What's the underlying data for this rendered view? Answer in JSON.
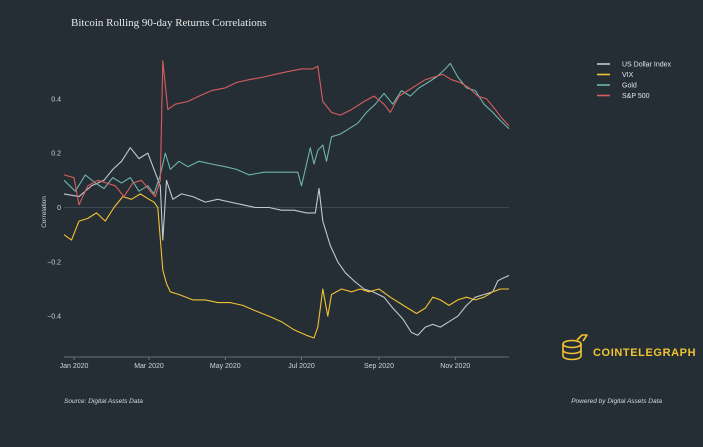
{
  "chart_data": {
    "type": "line",
    "title": "Bitcoin Rolling 90-day Returns Correlations",
    "xlabel": "",
    "ylabel": "Correlation",
    "x_tick_labels": [
      "Jan 2020",
      "Mar 2020",
      "May 2020",
      "Jul 2020",
      "Sep 2020",
      "Nov 2020"
    ],
    "y_ticks": [
      -0.4,
      -0.2,
      0,
      0.2,
      0.4
    ],
    "y_tick_labels": [
      "−0.4",
      "−0.2",
      "0",
      "0.2",
      "0.4"
    ],
    "xlim": [
      "2019-12-24",
      "2020-12-14"
    ],
    "ylim": [
      -0.55,
      0.55
    ],
    "grid": false,
    "legend_position": "top-right",
    "series": [
      {
        "name": "US Dollar Index",
        "color": "#c4c8cc",
        "points": [
          [
            "2019-12-24",
            0.05
          ],
          [
            "2020-01-05",
            0.04
          ],
          [
            "2020-01-15",
            0.08
          ],
          [
            "2020-01-25",
            0.1
          ],
          [
            "2020-02-01",
            0.14
          ],
          [
            "2020-02-08",
            0.17
          ],
          [
            "2020-02-15",
            0.22
          ],
          [
            "2020-02-22",
            0.18
          ],
          [
            "2020-02-29",
            0.2
          ],
          [
            "2020-03-05",
            0.14
          ],
          [
            "2020-03-10",
            0.08
          ],
          [
            "2020-03-12",
            -0.12
          ],
          [
            "2020-03-15",
            0.1
          ],
          [
            "2020-03-20",
            0.03
          ],
          [
            "2020-03-27",
            0.05
          ],
          [
            "2020-04-05",
            0.04
          ],
          [
            "2020-04-15",
            0.02
          ],
          [
            "2020-04-25",
            0.03
          ],
          [
            "2020-05-05",
            0.02
          ],
          [
            "2020-05-15",
            0.01
          ],
          [
            "2020-05-25",
            0.0
          ],
          [
            "2020-06-05",
            0.0
          ],
          [
            "2020-06-15",
            -0.01
          ],
          [
            "2020-06-25",
            -0.01
          ],
          [
            "2020-07-05",
            -0.02
          ],
          [
            "2020-07-12",
            -0.02
          ],
          [
            "2020-07-15",
            0.07
          ],
          [
            "2020-07-18",
            -0.05
          ],
          [
            "2020-07-24",
            -0.14
          ],
          [
            "2020-07-30",
            -0.2
          ],
          [
            "2020-08-05",
            -0.24
          ],
          [
            "2020-08-12",
            -0.27
          ],
          [
            "2020-08-20",
            -0.3
          ],
          [
            "2020-08-27",
            -0.31
          ],
          [
            "2020-09-05",
            -0.33
          ],
          [
            "2020-09-12",
            -0.37
          ],
          [
            "2020-09-20",
            -0.41
          ],
          [
            "2020-09-27",
            -0.46
          ],
          [
            "2020-10-02",
            -0.47
          ],
          [
            "2020-10-08",
            -0.44
          ],
          [
            "2020-10-14",
            -0.43
          ],
          [
            "2020-10-20",
            -0.44
          ],
          [
            "2020-10-27",
            -0.42
          ],
          [
            "2020-11-03",
            -0.4
          ],
          [
            "2020-11-10",
            -0.36
          ],
          [
            "2020-11-17",
            -0.33
          ],
          [
            "2020-11-24",
            -0.32
          ],
          [
            "2020-12-01",
            -0.31
          ],
          [
            "2020-12-05",
            -0.27
          ],
          [
            "2020-12-09",
            -0.26
          ],
          [
            "2020-12-14",
            -0.25
          ]
        ]
      },
      {
        "name": "VIX",
        "color": "#f1c232",
        "points": [
          [
            "2019-12-24",
            -0.1
          ],
          [
            "2019-12-30",
            -0.12
          ],
          [
            "2020-01-05",
            -0.05
          ],
          [
            "2020-01-12",
            -0.04
          ],
          [
            "2020-01-19",
            -0.02
          ],
          [
            "2020-01-26",
            -0.05
          ],
          [
            "2020-02-02",
            0.0
          ],
          [
            "2020-02-09",
            0.04
          ],
          [
            "2020-02-16",
            0.03
          ],
          [
            "2020-02-23",
            0.05
          ],
          [
            "2020-03-01",
            0.03
          ],
          [
            "2020-03-05",
            0.02
          ],
          [
            "2020-03-08",
            0.0
          ],
          [
            "2020-03-12",
            -0.23
          ],
          [
            "2020-03-15",
            -0.28
          ],
          [
            "2020-03-18",
            -0.31
          ],
          [
            "2020-03-25",
            -0.32
          ],
          [
            "2020-04-05",
            -0.34
          ],
          [
            "2020-04-15",
            -0.34
          ],
          [
            "2020-04-25",
            -0.35
          ],
          [
            "2020-05-05",
            -0.35
          ],
          [
            "2020-05-15",
            -0.36
          ],
          [
            "2020-05-25",
            -0.38
          ],
          [
            "2020-06-05",
            -0.4
          ],
          [
            "2020-06-15",
            -0.42
          ],
          [
            "2020-06-25",
            -0.45
          ],
          [
            "2020-07-05",
            -0.47
          ],
          [
            "2020-07-11",
            -0.48
          ],
          [
            "2020-07-14",
            -0.44
          ],
          [
            "2020-07-18",
            -0.3
          ],
          [
            "2020-07-22",
            -0.4
          ],
          [
            "2020-07-25",
            -0.32
          ],
          [
            "2020-08-02",
            -0.3
          ],
          [
            "2020-08-10",
            -0.31
          ],
          [
            "2020-08-17",
            -0.3
          ],
          [
            "2020-08-24",
            -0.31
          ],
          [
            "2020-09-01",
            -0.3
          ],
          [
            "2020-09-10",
            -0.33
          ],
          [
            "2020-09-17",
            -0.35
          ],
          [
            "2020-09-24",
            -0.37
          ],
          [
            "2020-10-01",
            -0.39
          ],
          [
            "2020-10-08",
            -0.37
          ],
          [
            "2020-10-14",
            -0.33
          ],
          [
            "2020-10-20",
            -0.34
          ],
          [
            "2020-10-27",
            -0.36
          ],
          [
            "2020-11-03",
            -0.34
          ],
          [
            "2020-11-10",
            -0.33
          ],
          [
            "2020-11-17",
            -0.34
          ],
          [
            "2020-11-24",
            -0.33
          ],
          [
            "2020-12-01",
            -0.31
          ],
          [
            "2020-12-07",
            -0.3
          ],
          [
            "2020-12-14",
            -0.3
          ]
        ]
      },
      {
        "name": "Gold",
        "color": "#6fb3aa",
        "points": [
          [
            "2019-12-24",
            0.1
          ],
          [
            "2020-01-02",
            0.06
          ],
          [
            "2020-01-10",
            0.12
          ],
          [
            "2020-01-18",
            0.09
          ],
          [
            "2020-01-25",
            0.07
          ],
          [
            "2020-02-01",
            0.11
          ],
          [
            "2020-02-08",
            0.09
          ],
          [
            "2020-02-15",
            0.11
          ],
          [
            "2020-02-22",
            0.06
          ],
          [
            "2020-02-29",
            0.08
          ],
          [
            "2020-03-05",
            0.05
          ],
          [
            "2020-03-10",
            0.12
          ],
          [
            "2020-03-14",
            0.2
          ],
          [
            "2020-03-18",
            0.14
          ],
          [
            "2020-03-25",
            0.17
          ],
          [
            "2020-04-01",
            0.15
          ],
          [
            "2020-04-10",
            0.17
          ],
          [
            "2020-04-20",
            0.16
          ],
          [
            "2020-05-01",
            0.15
          ],
          [
            "2020-05-10",
            0.14
          ],
          [
            "2020-05-20",
            0.12
          ],
          [
            "2020-06-01",
            0.13
          ],
          [
            "2020-06-10",
            0.13
          ],
          [
            "2020-06-20",
            0.13
          ],
          [
            "2020-06-28",
            0.13
          ],
          [
            "2020-07-01",
            0.08
          ],
          [
            "2020-07-04",
            0.14
          ],
          [
            "2020-07-08",
            0.22
          ],
          [
            "2020-07-11",
            0.16
          ],
          [
            "2020-07-14",
            0.21
          ],
          [
            "2020-07-18",
            0.23
          ],
          [
            "2020-07-21",
            0.17
          ],
          [
            "2020-07-25",
            0.26
          ],
          [
            "2020-08-01",
            0.27
          ],
          [
            "2020-08-08",
            0.29
          ],
          [
            "2020-08-15",
            0.31
          ],
          [
            "2020-08-22",
            0.35
          ],
          [
            "2020-08-29",
            0.38
          ],
          [
            "2020-09-05",
            0.42
          ],
          [
            "2020-09-12",
            0.38
          ],
          [
            "2020-09-19",
            0.43
          ],
          [
            "2020-09-26",
            0.41
          ],
          [
            "2020-10-03",
            0.44
          ],
          [
            "2020-10-10",
            0.46
          ],
          [
            "2020-10-17",
            0.48
          ],
          [
            "2020-10-24",
            0.51
          ],
          [
            "2020-10-28",
            0.53
          ],
          [
            "2020-11-03",
            0.48
          ],
          [
            "2020-11-10",
            0.44
          ],
          [
            "2020-11-17",
            0.43
          ],
          [
            "2020-11-24",
            0.38
          ],
          [
            "2020-12-01",
            0.35
          ],
          [
            "2020-12-07",
            0.32
          ],
          [
            "2020-12-14",
            0.29
          ]
        ]
      },
      {
        "name": "S&P 500",
        "color": "#d85d5d",
        "points": [
          [
            "2019-12-24",
            0.12
          ],
          [
            "2020-01-01",
            0.11
          ],
          [
            "2020-01-05",
            0.01
          ],
          [
            "2020-01-12",
            0.08
          ],
          [
            "2020-01-20",
            0.1
          ],
          [
            "2020-01-27",
            0.09
          ],
          [
            "2020-02-03",
            0.08
          ],
          [
            "2020-02-10",
            0.04
          ],
          [
            "2020-02-17",
            0.09
          ],
          [
            "2020-02-24",
            0.1
          ],
          [
            "2020-03-02",
            0.06
          ],
          [
            "2020-03-06",
            0.04
          ],
          [
            "2020-03-10",
            0.1
          ],
          [
            "2020-03-12",
            0.54
          ],
          [
            "2020-03-16",
            0.36
          ],
          [
            "2020-03-22",
            0.38
          ],
          [
            "2020-04-01",
            0.39
          ],
          [
            "2020-04-10",
            0.41
          ],
          [
            "2020-04-20",
            0.43
          ],
          [
            "2020-05-01",
            0.44
          ],
          [
            "2020-05-10",
            0.46
          ],
          [
            "2020-05-20",
            0.47
          ],
          [
            "2020-06-01",
            0.48
          ],
          [
            "2020-06-10",
            0.49
          ],
          [
            "2020-06-20",
            0.5
          ],
          [
            "2020-07-01",
            0.51
          ],
          [
            "2020-07-10",
            0.51
          ],
          [
            "2020-07-14",
            0.52
          ],
          [
            "2020-07-18",
            0.39
          ],
          [
            "2020-07-25",
            0.35
          ],
          [
            "2020-08-01",
            0.34
          ],
          [
            "2020-08-10",
            0.36
          ],
          [
            "2020-08-20",
            0.39
          ],
          [
            "2020-08-28",
            0.41
          ],
          [
            "2020-09-05",
            0.38
          ],
          [
            "2020-09-10",
            0.35
          ],
          [
            "2020-09-17",
            0.41
          ],
          [
            "2020-09-24",
            0.43
          ],
          [
            "2020-10-01",
            0.45
          ],
          [
            "2020-10-08",
            0.47
          ],
          [
            "2020-10-15",
            0.48
          ],
          [
            "2020-10-22",
            0.49
          ],
          [
            "2020-10-29",
            0.47
          ],
          [
            "2020-11-05",
            0.46
          ],
          [
            "2020-11-12",
            0.44
          ],
          [
            "2020-11-19",
            0.41
          ],
          [
            "2020-11-26",
            0.4
          ],
          [
            "2020-12-03",
            0.36
          ],
          [
            "2020-12-08",
            0.33
          ],
          [
            "2020-12-14",
            0.3
          ]
        ]
      }
    ]
  },
  "footer": {
    "source": "Source: Digital Assets Data",
    "powered_by": "Powered by Digital Assets Data"
  },
  "brand": {
    "name": "COINTELEGRAPH",
    "logo_icon": "cointelegraph-coin-stack-icon",
    "color": "#f1c232"
  }
}
